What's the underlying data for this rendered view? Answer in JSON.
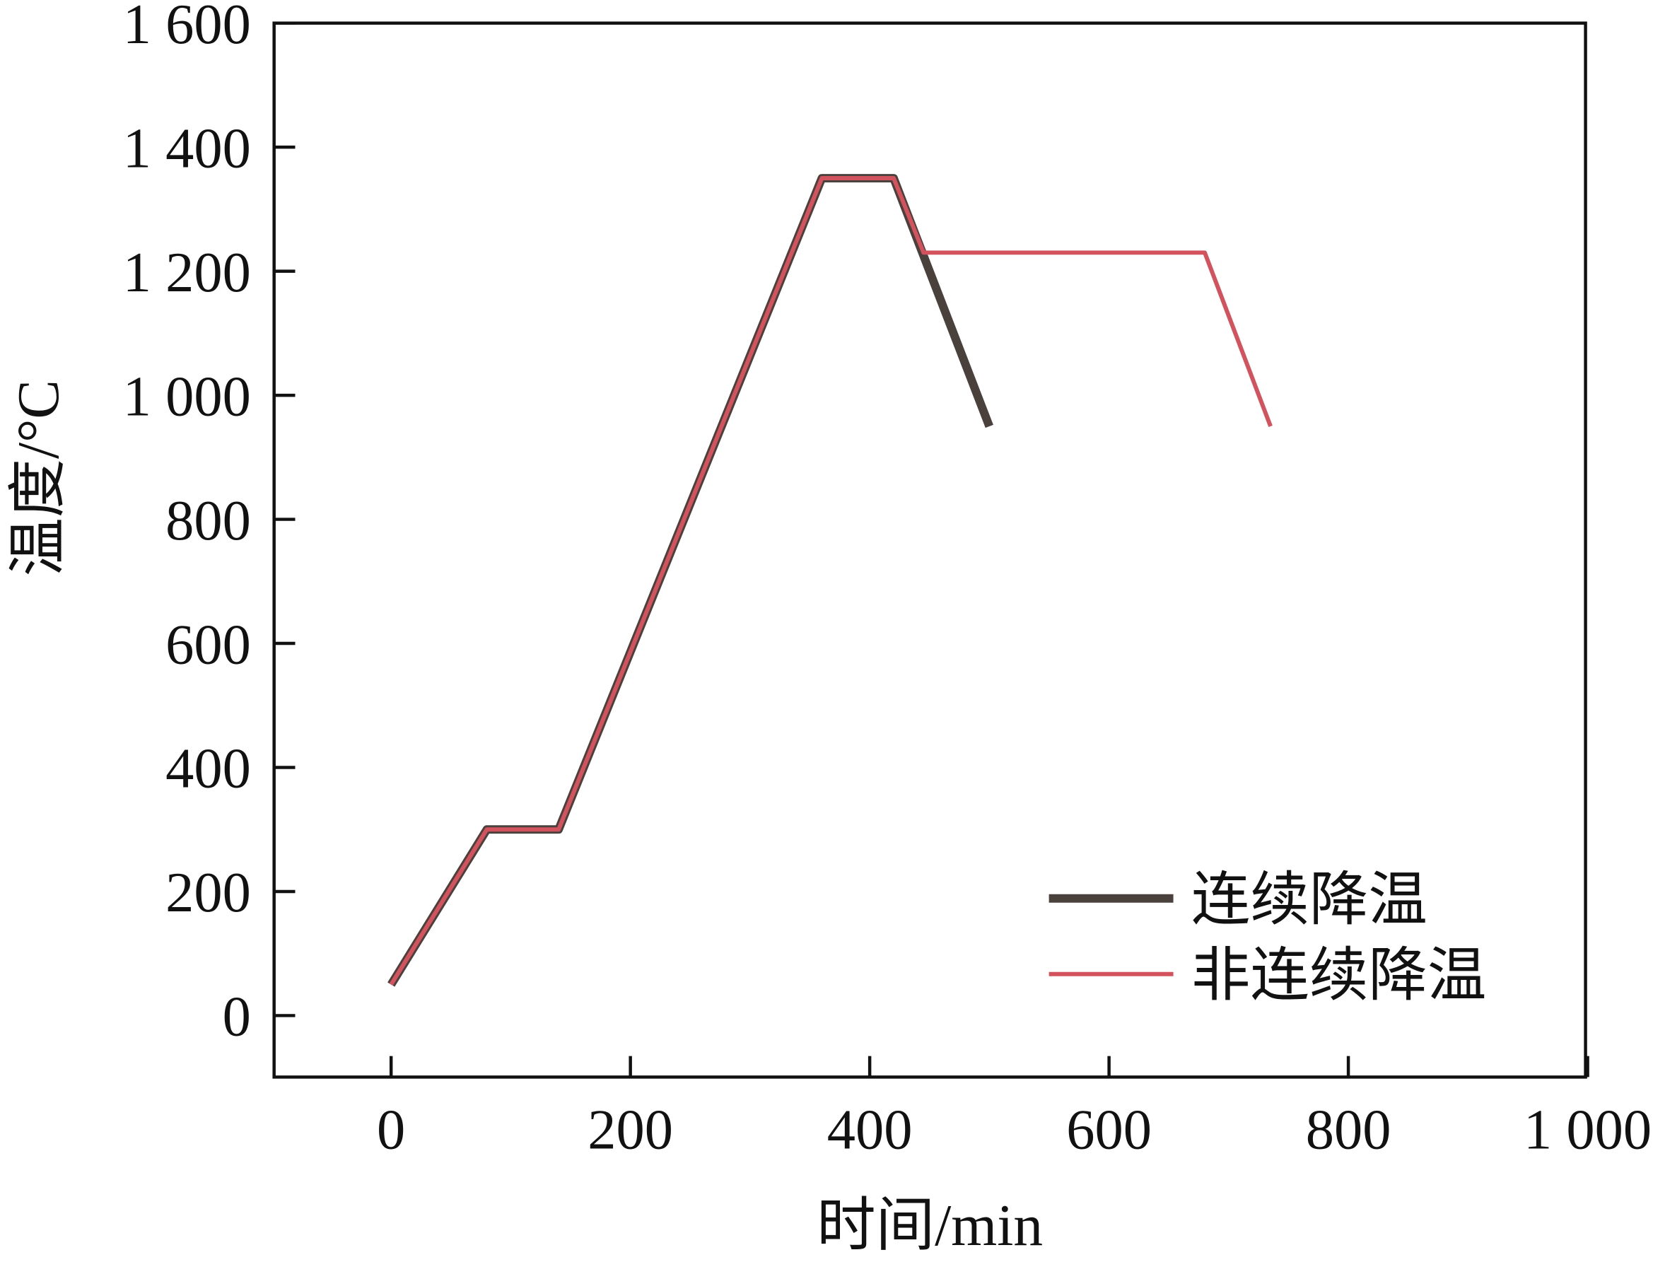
{
  "chart_data": {
    "type": "line",
    "x_label": "时间/min",
    "y_label": "温度/°C",
    "xlim": [
      -100,
      1000
    ],
    "xticks": [
      0,
      200,
      400,
      600,
      800,
      {
        "value": 1000,
        "label": "1 000"
      }
    ],
    "ylim": [
      -100,
      1600
    ],
    "yticks": [
      0,
      200,
      400,
      600,
      800,
      {
        "value": 1000,
        "label": "1 000"
      },
      {
        "value": 1200,
        "label": "1 200"
      },
      {
        "value": 1400,
        "label": "1 400"
      },
      {
        "value": 1600,
        "label": "1 600"
      }
    ],
    "legend": "lower right",
    "series": [
      {
        "name": "连续降温",
        "color": "#4a403c",
        "x": [
          0,
          80,
          140,
          360,
          420,
          500
        ],
        "values": [
          50,
          300,
          300,
          1350,
          1350,
          950
        ]
      },
      {
        "name": "非连续降温",
        "color": "#d2525e",
        "x": [
          0,
          80,
          140,
          360,
          420,
          445,
          680,
          735
        ],
        "values": [
          50,
          300,
          300,
          1350,
          1350,
          1230,
          1230,
          950
        ]
      }
    ]
  }
}
